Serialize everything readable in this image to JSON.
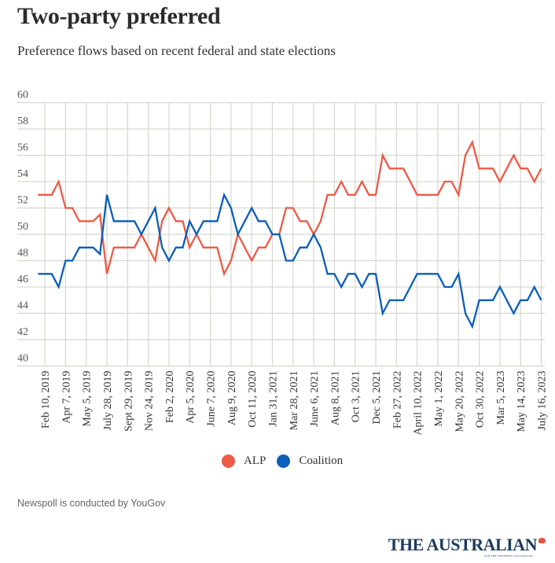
{
  "header": {
    "title": "Two-party preferred",
    "subtitle": "Preference flows based on recent federal and state elections"
  },
  "legend": {
    "items": [
      {
        "label": "ALP",
        "color": "#ee5a46"
      },
      {
        "label": "Coalition",
        "color": "#0a5fb8"
      }
    ]
  },
  "footer": {
    "note": "Newspoll is conducted by YouGov",
    "brand": "THE AUSTRALIAN",
    "brand_tagline": "FOR THE INFORMED AUSTRALIAN"
  },
  "chart_data": {
    "type": "line",
    "title": "Two-party preferred",
    "subtitle": "Preference flows based on recent federal and state elections",
    "xlabel": "",
    "ylabel": "",
    "ylim": [
      40,
      60
    ],
    "yticks": [
      40,
      42,
      44,
      46,
      48,
      50,
      52,
      54,
      56,
      58,
      60
    ],
    "grid": true,
    "legend_position": "bottom-center",
    "x_tick_labels": [
      "Feb 10, 2019",
      "Apr 7, 2019",
      "May 5, 2019",
      "July 28, 2019",
      "Sept 29, 2019",
      "Nov 24, 2019",
      "Feb 2, 2020",
      "Apr 5, 2020",
      "June 7, 2020",
      "Aug 9, 2020",
      "Oct 11, 2020",
      "Jan 31, 2021",
      "Mar 28, 2021",
      "June 6, 2021",
      "Aug 8, 2021",
      "Oct 3, 2021",
      "Dec 5, 2021",
      "Feb 27, 2022",
      "April 10, 2022",
      "May 1, 2022",
      "May 20, 2022",
      "Oct 30, 2022",
      "Mar 5, 2023",
      "May 14, 2023",
      "July 16, 2023"
    ],
    "x_tick_point_indices": [
      1,
      4,
      7,
      10,
      13,
      16,
      19,
      22,
      25,
      28,
      31,
      34,
      37,
      40,
      43,
      46,
      49,
      52,
      55,
      58,
      61,
      64,
      67,
      70,
      73
    ],
    "series": [
      {
        "name": "ALP",
        "color": "#ee5a46",
        "values": [
          53,
          53,
          53,
          54,
          52,
          52,
          51,
          51,
          51,
          51.5,
          47,
          49,
          49,
          49,
          49,
          50,
          49,
          48,
          51,
          52,
          51,
          51,
          49,
          50,
          49,
          49,
          49,
          47,
          48,
          50,
          49,
          48,
          49,
          49,
          50,
          50,
          52,
          52,
          51,
          51,
          50,
          51,
          53,
          53,
          54,
          53,
          53,
          54,
          53,
          53,
          56,
          55,
          55,
          55,
          54,
          53,
          53,
          53,
          53,
          54,
          54,
          53,
          56,
          57,
          55,
          55,
          55,
          54,
          55,
          56,
          55,
          55,
          54,
          55
        ]
      },
      {
        "name": "Coalition",
        "color": "#0a5fb8",
        "values": [
          47,
          47,
          47,
          46,
          48,
          48,
          49,
          49,
          49,
          48.5,
          53,
          51,
          51,
          51,
          51,
          50,
          51,
          52,
          49,
          48,
          49,
          49,
          51,
          50,
          51,
          51,
          51,
          53,
          52,
          50,
          51,
          52,
          51,
          51,
          50,
          50,
          48,
          48,
          49,
          49,
          50,
          49,
          47,
          47,
          46,
          47,
          47,
          46,
          47,
          47,
          44,
          45,
          45,
          45,
          46,
          47,
          47,
          47,
          47,
          46,
          46,
          47,
          44,
          43,
          45,
          45,
          45,
          46,
          45,
          44,
          45,
          45,
          46,
          45
        ]
      }
    ]
  }
}
